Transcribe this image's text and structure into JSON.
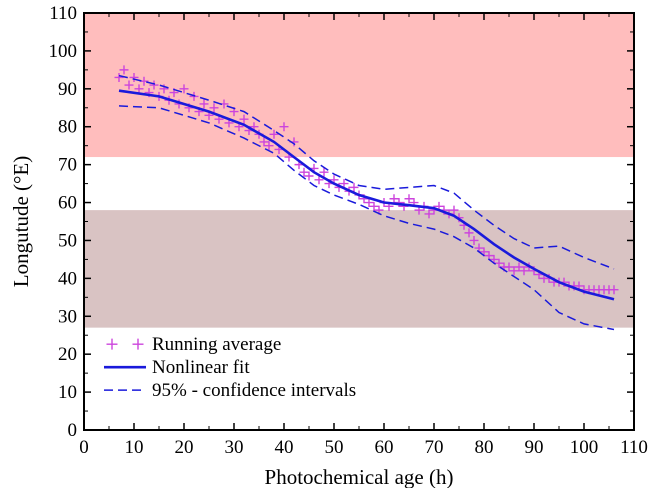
{
  "chart_data": {
    "type": "scatter",
    "title": "",
    "xlabel": "Photochemical age (h)",
    "ylabel": "Longutude (°E)",
    "xlim": [
      0,
      110
    ],
    "ylim": [
      0,
      110
    ],
    "xticks": [
      0,
      10,
      20,
      30,
      40,
      50,
      60,
      70,
      80,
      90,
      100,
      110
    ],
    "yticks": [
      0,
      10,
      20,
      30,
      40,
      50,
      60,
      70,
      80,
      90,
      100,
      110
    ],
    "bands": [
      {
        "y_from": 72,
        "y_to": 110,
        "color": "#ffbdbd"
      },
      {
        "y_from": 27,
        "y_to": 58,
        "color": "#d9c3c3"
      }
    ],
    "legend_position": "bottom-left",
    "series": [
      {
        "name": "Running average",
        "kind": "markers",
        "marker": "+",
        "color": "#cc44dd",
        "points": [
          [
            7,
            93
          ],
          [
            8,
            95
          ],
          [
            9,
            91
          ],
          [
            10,
            93
          ],
          [
            11,
            90
          ],
          [
            12,
            92
          ],
          [
            13,
            89
          ],
          [
            14,
            91
          ],
          [
            15,
            88
          ],
          [
            16,
            90
          ],
          [
            17,
            87
          ],
          [
            18,
            89
          ],
          [
            19,
            86
          ],
          [
            20,
            90
          ],
          [
            21,
            85
          ],
          [
            22,
            88
          ],
          [
            23,
            84
          ],
          [
            24,
            86
          ],
          [
            25,
            83
          ],
          [
            26,
            85
          ],
          [
            27,
            82
          ],
          [
            28,
            86
          ],
          [
            29,
            81
          ],
          [
            30,
            84
          ],
          [
            31,
            80
          ],
          [
            32,
            82
          ],
          [
            33,
            79
          ],
          [
            34,
            80
          ],
          [
            35,
            78
          ],
          [
            36,
            76
          ],
          [
            37,
            75
          ],
          [
            38,
            78
          ],
          [
            39,
            74
          ],
          [
            40,
            80
          ],
          [
            41,
            72
          ],
          [
            42,
            76
          ],
          [
            43,
            70
          ],
          [
            44,
            68
          ],
          [
            45,
            67
          ],
          [
            46,
            69
          ],
          [
            47,
            66
          ],
          [
            48,
            68
          ],
          [
            49,
            65
          ],
          [
            50,
            66
          ],
          [
            51,
            64
          ],
          [
            52,
            65
          ],
          [
            53,
            63
          ],
          [
            54,
            64
          ],
          [
            55,
            62
          ],
          [
            56,
            61
          ],
          [
            57,
            60
          ],
          [
            58,
            59
          ],
          [
            59,
            58
          ],
          [
            60,
            60
          ],
          [
            61,
            59
          ],
          [
            62,
            61
          ],
          [
            63,
            60
          ],
          [
            64,
            59
          ],
          [
            65,
            61
          ],
          [
            66,
            60
          ],
          [
            67,
            58
          ],
          [
            68,
            59
          ],
          [
            69,
            57
          ],
          [
            70,
            58
          ],
          [
            71,
            59
          ],
          [
            72,
            58
          ],
          [
            73,
            57
          ],
          [
            74,
            58
          ],
          [
            75,
            56
          ],
          [
            76,
            54
          ],
          [
            77,
            52
          ],
          [
            78,
            50
          ],
          [
            79,
            48
          ],
          [
            80,
            47
          ],
          [
            81,
            46
          ],
          [
            82,
            45
          ],
          [
            83,
            44
          ],
          [
            84,
            43
          ],
          [
            85,
            43
          ],
          [
            86,
            42
          ],
          [
            87,
            43
          ],
          [
            88,
            42
          ],
          [
            89,
            43
          ],
          [
            90,
            42
          ],
          [
            91,
            41
          ],
          [
            92,
            40
          ],
          [
            93,
            40
          ],
          [
            94,
            39
          ],
          [
            95,
            39
          ],
          [
            96,
            39
          ],
          [
            97,
            38
          ],
          [
            98,
            38
          ],
          [
            99,
            38
          ],
          [
            100,
            37
          ],
          [
            101,
            37
          ],
          [
            102,
            37
          ],
          [
            103,
            37
          ],
          [
            104,
            37
          ],
          [
            105,
            37
          ],
          [
            106,
            37
          ]
        ]
      },
      {
        "name": "Nonlinear fit",
        "kind": "line",
        "color": "#1a1adb",
        "points": [
          [
            7,
            89.5
          ],
          [
            15,
            88.0
          ],
          [
            25,
            84.0
          ],
          [
            32,
            80.5
          ],
          [
            38,
            76.0
          ],
          [
            42,
            72.0
          ],
          [
            46,
            68.0
          ],
          [
            50,
            65.0
          ],
          [
            55,
            62.0
          ],
          [
            60,
            60.0
          ],
          [
            65,
            59.3
          ],
          [
            70,
            58.5
          ],
          [
            74,
            56.5
          ],
          [
            78,
            53.0
          ],
          [
            82,
            49.0
          ],
          [
            86,
            45.5
          ],
          [
            90,
            42.5
          ],
          [
            95,
            39.0
          ],
          [
            100,
            36.5
          ],
          [
            106,
            34.5
          ]
        ]
      },
      {
        "name": "95% - confidence intervals",
        "kind": "dashed",
        "color": "#1a1adb",
        "points": [
          [
            7,
            93.5
          ],
          [
            15,
            91.0
          ],
          [
            25,
            87.0
          ],
          [
            32,
            84.0
          ],
          [
            38,
            79.0
          ],
          [
            42,
            75.5
          ],
          [
            46,
            71.0
          ],
          [
            50,
            67.5
          ],
          [
            55,
            64.5
          ],
          [
            60,
            63.5
          ],
          [
            65,
            64.0
          ],
          [
            70,
            64.5
          ],
          [
            74,
            62.5
          ],
          [
            78,
            58.0
          ],
          [
            82,
            54.0
          ],
          [
            86,
            50.5
          ],
          [
            90,
            48.0
          ],
          [
            95,
            48.5
          ],
          [
            100,
            45.5
          ],
          [
            106,
            42.5
          ]
        ]
      },
      {
        "name": "95% - confidence intervals lower",
        "kind": "dashed",
        "color": "#1a1adb",
        "points": [
          [
            7,
            85.5
          ],
          [
            15,
            85.0
          ],
          [
            25,
            81.0
          ],
          [
            32,
            77.0
          ],
          [
            38,
            73.0
          ],
          [
            42,
            68.5
          ],
          [
            46,
            64.5
          ],
          [
            50,
            62.0
          ],
          [
            55,
            59.5
          ],
          [
            60,
            56.5
          ],
          [
            65,
            54.5
          ],
          [
            70,
            53.0
          ],
          [
            74,
            51.0
          ],
          [
            78,
            48.0
          ],
          [
            82,
            44.0
          ],
          [
            86,
            40.5
          ],
          [
            90,
            37.0
          ],
          [
            95,
            31.0
          ],
          [
            100,
            28.0
          ],
          [
            106,
            26.5
          ]
        ]
      }
    ],
    "legend": [
      {
        "label": "Running average",
        "series": 0
      },
      {
        "label": "Nonlinear fit",
        "series": 1
      },
      {
        "label": "95% - confidence intervals",
        "series": 2
      }
    ]
  }
}
